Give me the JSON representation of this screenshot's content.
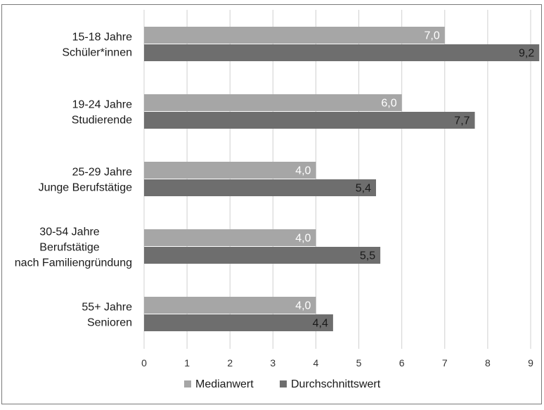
{
  "chart_data": {
    "type": "bar",
    "orientation": "horizontal",
    "categories": [
      [
        "15-18 Jahre",
        "Schüler*innen"
      ],
      [
        "19-24 Jahre",
        "Studierende"
      ],
      [
        "25-29 Jahre",
        "Junge Berufstätige"
      ],
      [
        "30-54 Jahre",
        "Berufstätige",
        "nach Familiengründung"
      ],
      [
        "55+ Jahre",
        "Senioren"
      ]
    ],
    "series": [
      {
        "name": "Medianwert",
        "color": "#a6a6a6",
        "label_color": "#ffffff",
        "values": [
          7.0,
          6.0,
          4.0,
          4.0,
          4.0
        ],
        "labels": [
          "7,0",
          "6,0",
          "4,0",
          "4,0",
          "4,0"
        ]
      },
      {
        "name": "Durchschnittswert",
        "color": "#6e6e6e",
        "label_color": "#1a1a1a",
        "values": [
          9.2,
          7.7,
          5.4,
          5.5,
          4.4
        ],
        "labels": [
          "9,2",
          "7,7",
          "5,4",
          "5,5",
          "4,4"
        ]
      }
    ],
    "xlim": [
      0,
      9
    ],
    "x_ticks": [
      "0",
      "1",
      "2",
      "3",
      "4",
      "5",
      "6",
      "7",
      "8",
      "9"
    ],
    "grid": true,
    "legend": "bottom",
    "title": "",
    "xlabel": "",
    "ylabel": ""
  }
}
